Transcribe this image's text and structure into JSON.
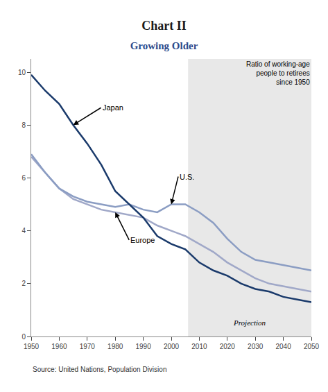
{
  "chart_data": {
    "type": "line",
    "title": "Chart II",
    "subtitle": "Growing Older",
    "source": "Source: United Nations, Population Division",
    "annotation": "Ratio of working-age\npeople to retirees\nsince 1950",
    "projection": {
      "label": "Projection",
      "start": 2006,
      "color": "#e8e8e8"
    },
    "x": [
      1950,
      1955,
      1960,
      1965,
      1970,
      1975,
      1980,
      1985,
      1990,
      1995,
      2000,
      2005,
      2010,
      2015,
      2020,
      2025,
      2030,
      2035,
      2040,
      2045,
      2050
    ],
    "series": [
      {
        "name": "Europe",
        "color": "#a0a8c8",
        "values": [
          6.8,
          6.2,
          5.6,
          5.2,
          5.0,
          4.8,
          4.7,
          4.6,
          4.5,
          4.2,
          4.0,
          3.8,
          3.5,
          3.2,
          2.8,
          2.5,
          2.2,
          2.0,
          1.9,
          1.8,
          1.7
        ]
      },
      {
        "name": "U.S.",
        "color": "#8b9dc3",
        "values": [
          6.9,
          6.2,
          5.6,
          5.3,
          5.1,
          5.0,
          4.9,
          5.0,
          4.8,
          4.7,
          5.0,
          5.0,
          4.7,
          4.3,
          3.7,
          3.2,
          2.9,
          2.8,
          2.7,
          2.6,
          2.5
        ]
      },
      {
        "name": "Japan",
        "color": "#1a3a6b",
        "values": [
          9.9,
          9.3,
          8.8,
          8.0,
          7.3,
          6.5,
          5.5,
          5.0,
          4.5,
          3.8,
          3.5,
          3.3,
          2.8,
          2.5,
          2.3,
          2.0,
          1.8,
          1.7,
          1.5,
          1.4,
          1.3
        ]
      }
    ],
    "xlim": [
      1950,
      2050
    ],
    "ylim": [
      0,
      10.5
    ],
    "xticks": [
      1950,
      1960,
      1970,
      1980,
      1990,
      2000,
      2010,
      2020,
      2030,
      2040,
      2050
    ],
    "yticks": [
      0,
      2,
      4,
      6,
      8,
      10
    ],
    "grid": false
  }
}
